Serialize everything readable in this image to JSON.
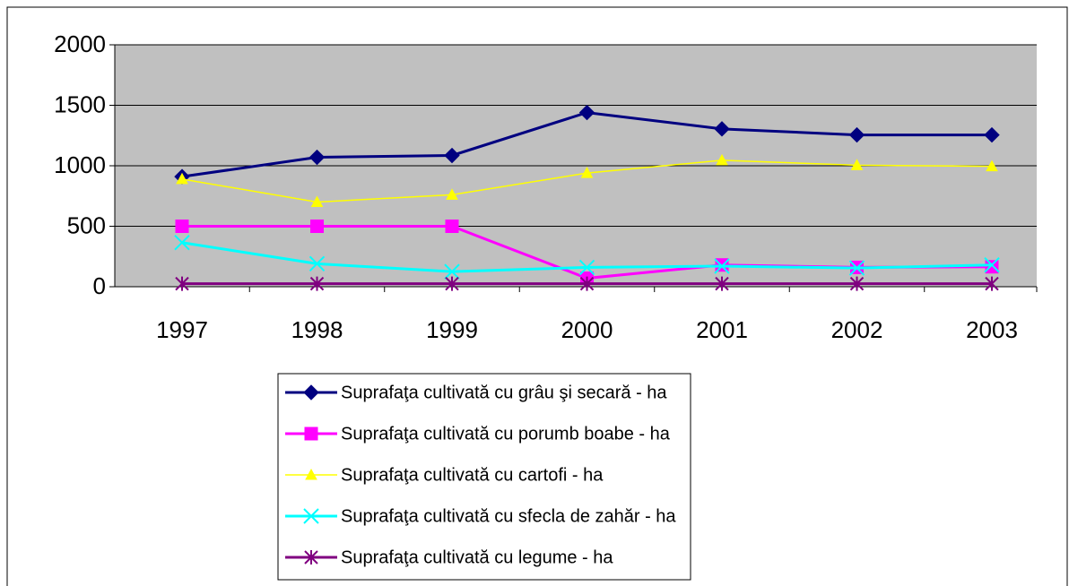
{
  "chart_data": {
    "type": "line",
    "categories": [
      "1997",
      "1998",
      "1999",
      "2000",
      "2001",
      "2002",
      "2003"
    ],
    "series": [
      {
        "name": "Suprafaţa cultivată cu grâu şi secară - ha",
        "color": "#000080",
        "marker": "diamond",
        "values": [
          910,
          1070,
          1085,
          1440,
          1305,
          1255,
          1255
        ]
      },
      {
        "name": "Suprafaţa cultivată cu porumb boabe - ha",
        "color": "#ff00ff",
        "marker": "square",
        "values": [
          500,
          500,
          500,
          70,
          180,
          160,
          165
        ]
      },
      {
        "name": "Suprafaţa cultivată cu cartofi - ha",
        "color": "#ffff00",
        "marker": "triangle",
        "values": [
          890,
          700,
          760,
          940,
          1045,
          1005,
          995
        ]
      },
      {
        "name": "Suprafaţa cultivată cu sfecla de zahăr - ha",
        "color": "#00ffff",
        "marker": "x",
        "values": [
          365,
          190,
          125,
          160,
          170,
          155,
          180
        ]
      },
      {
        "name": "Suprafaţa cultivată cu legume - ha",
        "color": "#800080",
        "marker": "star",
        "values": [
          25,
          25,
          25,
          25,
          25,
          25,
          25
        ]
      }
    ],
    "ylim": [
      0,
      2000
    ],
    "yticks": [
      0,
      500,
      1000,
      1500,
      2000
    ],
    "grid": true,
    "legend": "bottom"
  }
}
